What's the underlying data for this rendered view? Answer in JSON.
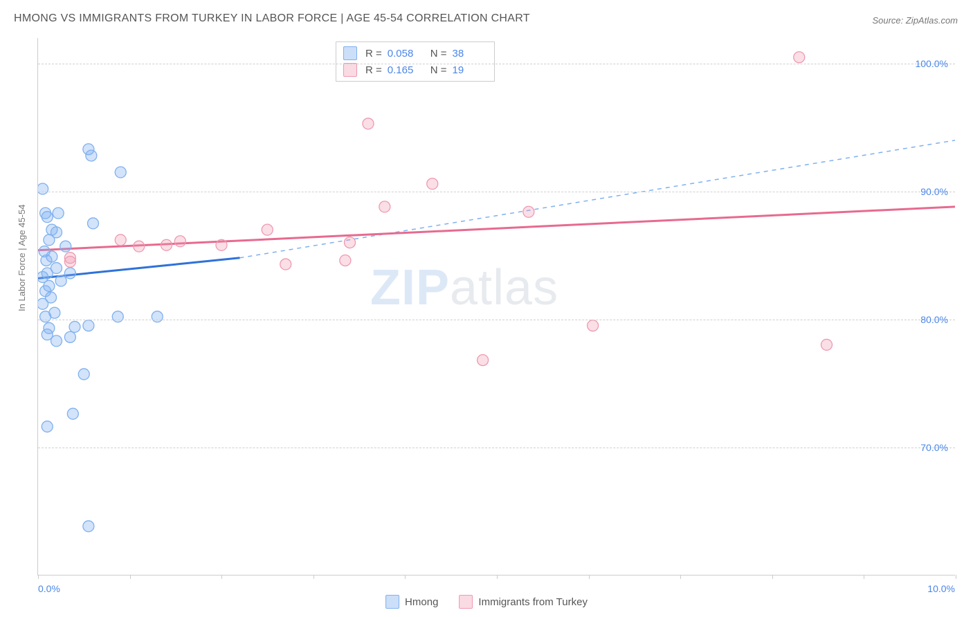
{
  "title": "HMONG VS IMMIGRANTS FROM TURKEY IN LABOR FORCE | AGE 45-54 CORRELATION CHART",
  "source": "Source: ZipAtlas.com",
  "ylabel": "In Labor Force | Age 45-54",
  "watermark_zip": "ZIP",
  "watermark_atlas": "atlas",
  "chart": {
    "type": "scatter",
    "xlim": [
      0.0,
      10.0
    ],
    "ylim": [
      60.0,
      102.0
    ],
    "x_ticks": [
      0.0,
      1.0,
      2.0,
      3.0,
      4.0,
      5.0,
      6.0,
      7.0,
      8.0,
      9.0,
      10.0
    ],
    "x_tick_labels": {
      "0": "0.0%",
      "10": "10.0%"
    },
    "y_gridlines": [
      70.0,
      80.0,
      90.0,
      100.0
    ],
    "y_tick_labels": [
      "70.0%",
      "80.0%",
      "90.0%",
      "100.0%"
    ],
    "background_color": "#ffffff",
    "grid_color": "#cfcfcf",
    "axis_color": "#cccccc",
    "tick_label_color": "#4a86e8",
    "marker_radius": 8,
    "marker_stroke_width": 1.3,
    "series": [
      {
        "name": "Hmong",
        "color_fill": "rgba(127,175,240,0.35)",
        "color_stroke": "#7fb0ef",
        "R": "0.058",
        "N": "38",
        "trend": {
          "x1": 0.0,
          "y1": 83.2,
          "x2": 2.2,
          "y2": 84.8,
          "extend_x2": 10.0,
          "extend_y2": 94.0,
          "solid_color": "#2f72d9",
          "solid_width": 3,
          "dash_color": "#7fb0ef",
          "dash_width": 1.5
        },
        "points": [
          {
            "x": 0.05,
            "y": 90.2
          },
          {
            "x": 0.08,
            "y": 88.3
          },
          {
            "x": 0.1,
            "y": 88.0
          },
          {
            "x": 0.55,
            "y": 93.3
          },
          {
            "x": 0.58,
            "y": 92.8
          },
          {
            "x": 0.9,
            "y": 91.5
          },
          {
            "x": 0.15,
            "y": 87.0
          },
          {
            "x": 0.2,
            "y": 86.8
          },
          {
            "x": 0.12,
            "y": 86.2
          },
          {
            "x": 0.3,
            "y": 85.7
          },
          {
            "x": 0.07,
            "y": 85.3
          },
          {
            "x": 0.15,
            "y": 84.9
          },
          {
            "x": 0.09,
            "y": 84.6
          },
          {
            "x": 0.2,
            "y": 84.0
          },
          {
            "x": 0.1,
            "y": 83.6
          },
          {
            "x": 0.05,
            "y": 83.3
          },
          {
            "x": 0.25,
            "y": 83.0
          },
          {
            "x": 0.35,
            "y": 83.6
          },
          {
            "x": 0.12,
            "y": 82.6
          },
          {
            "x": 0.08,
            "y": 82.2
          },
          {
            "x": 0.14,
            "y": 81.7
          },
          {
            "x": 0.05,
            "y": 81.2
          },
          {
            "x": 0.18,
            "y": 80.5
          },
          {
            "x": 0.08,
            "y": 80.2
          },
          {
            "x": 0.87,
            "y": 80.2
          },
          {
            "x": 1.3,
            "y": 80.2
          },
          {
            "x": 0.12,
            "y": 79.3
          },
          {
            "x": 0.4,
            "y": 79.4
          },
          {
            "x": 0.55,
            "y": 79.5
          },
          {
            "x": 0.1,
            "y": 78.8
          },
          {
            "x": 0.35,
            "y": 78.6
          },
          {
            "x": 0.2,
            "y": 78.3
          },
          {
            "x": 0.5,
            "y": 75.7
          },
          {
            "x": 0.38,
            "y": 72.6
          },
          {
            "x": 0.1,
            "y": 71.6
          },
          {
            "x": 0.55,
            "y": 63.8
          },
          {
            "x": 0.6,
            "y": 87.5
          },
          {
            "x": 0.22,
            "y": 88.3
          }
        ]
      },
      {
        "name": "Immigrants from Turkey",
        "color_fill": "rgba(240,150,175,0.30)",
        "color_stroke": "#ef99b0",
        "R": "0.165",
        "N": "19",
        "trend": {
          "x1": 0.0,
          "y1": 85.4,
          "x2": 10.0,
          "y2": 88.8,
          "solid_color": "#e76a8f",
          "solid_width": 3
        },
        "points": [
          {
            "x": 0.35,
            "y": 84.8
          },
          {
            "x": 0.35,
            "y": 84.5
          },
          {
            "x": 0.9,
            "y": 86.2
          },
          {
            "x": 1.1,
            "y": 85.7
          },
          {
            "x": 1.4,
            "y": 85.8
          },
          {
            "x": 1.55,
            "y": 86.1
          },
          {
            "x": 2.0,
            "y": 85.8
          },
          {
            "x": 2.5,
            "y": 87.0
          },
          {
            "x": 2.7,
            "y": 84.3
          },
          {
            "x": 3.4,
            "y": 86.0
          },
          {
            "x": 3.35,
            "y": 84.6
          },
          {
            "x": 3.6,
            "y": 95.3
          },
          {
            "x": 3.78,
            "y": 88.8
          },
          {
            "x": 4.3,
            "y": 90.6
          },
          {
            "x": 4.85,
            "y": 76.8
          },
          {
            "x": 5.35,
            "y": 88.4
          },
          {
            "x": 6.05,
            "y": 79.5
          },
          {
            "x": 8.3,
            "y": 100.5
          },
          {
            "x": 8.6,
            "y": 78.0
          }
        ]
      }
    ]
  },
  "legend_top": [
    {
      "swatch_fill": "rgba(127,175,240,0.40)",
      "swatch_stroke": "#7fb0ef",
      "R_label": "R =",
      "R": "0.058",
      "N_label": "N =",
      "N": "38"
    },
    {
      "swatch_fill": "rgba(240,150,175,0.35)",
      "swatch_stroke": "#ef99b0",
      "R_label": "R =",
      "R": "0.165",
      "N_label": "N =",
      "N": "19"
    }
  ],
  "legend_bottom": [
    {
      "swatch_fill": "rgba(127,175,240,0.40)",
      "swatch_stroke": "#7fb0ef",
      "label": "Hmong"
    },
    {
      "swatch_fill": "rgba(240,150,175,0.35)",
      "swatch_stroke": "#ef99b0",
      "label": "Immigrants from Turkey"
    }
  ]
}
